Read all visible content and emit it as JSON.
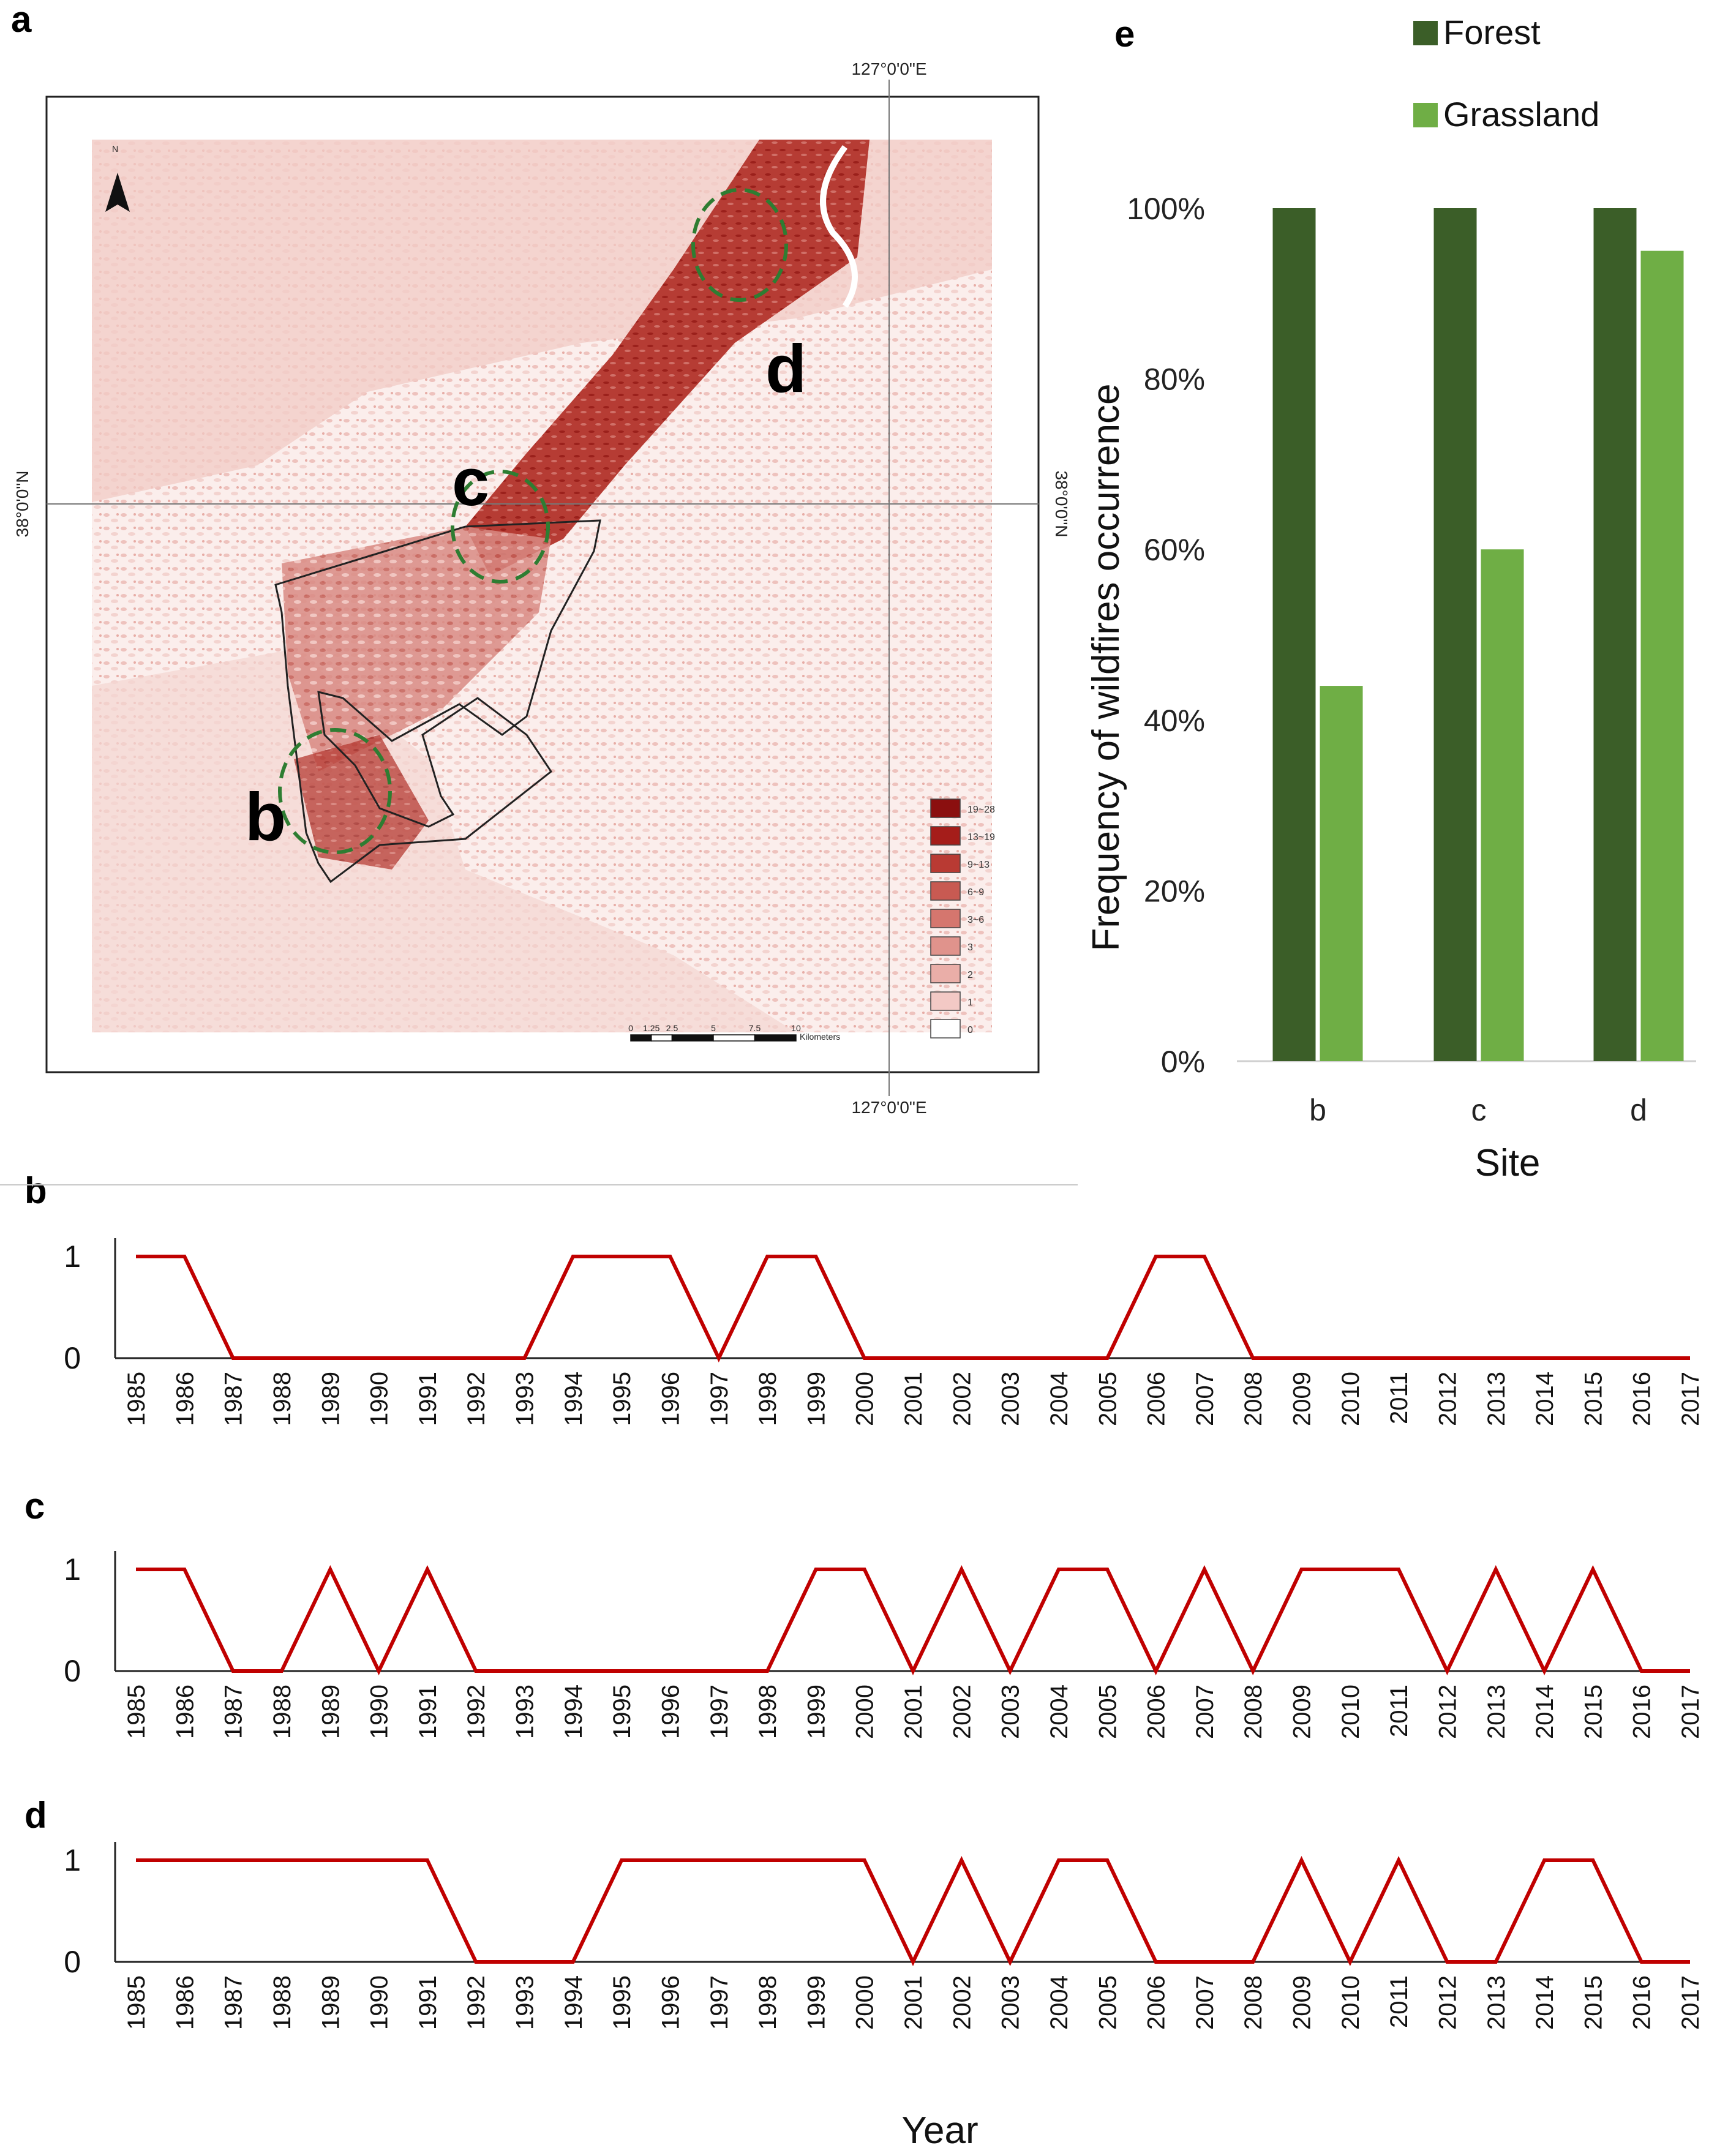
{
  "panels": {
    "a": "a",
    "b": "b",
    "c": "c",
    "d": "d",
    "e": "e"
  },
  "map": {
    "coord_top": "127°0'0\"E",
    "coord_bottom": "127°0'0\"E",
    "coord_left": "38°0'0\"N",
    "coord_right": "38°0'0\"N",
    "north_label": "N",
    "site_labels": {
      "b": "b",
      "c": "c",
      "d": "d"
    },
    "legend": [
      {
        "label": "19~28",
        "color": "#8b0f0f"
      },
      {
        "label": "13~19",
        "color": "#a51d1a"
      },
      {
        "label": "9~13",
        "color": "#b93a33"
      },
      {
        "label": "6~9",
        "color": "#c85a52"
      },
      {
        "label": "3~6",
        "color": "#d5766e"
      },
      {
        "label": "3",
        "color": "#e0938c"
      },
      {
        "label": "2",
        "color": "#eaaea8"
      },
      {
        "label": "1",
        "color": "#f3c9c5"
      },
      {
        "label": "0",
        "color": "#ffffff"
      }
    ],
    "scale": {
      "ticks": [
        "0",
        "1.25",
        "2.5",
        "5",
        "7.5",
        "10"
      ],
      "unit": "Kilometers"
    }
  },
  "chart_data": [
    {
      "id": "e",
      "type": "bar",
      "categories": [
        "b",
        "c",
        "d"
      ],
      "series": [
        {
          "name": "Forest",
          "color": "#3b5e28",
          "values": [
            100,
            100,
            100
          ]
        },
        {
          "name": "Grassland",
          "color": "#6fae45",
          "values": [
            44,
            60,
            95
          ]
        }
      ],
      "yticks": [
        "0%",
        "20%",
        "40%",
        "60%",
        "80%",
        "100%"
      ],
      "ylim": [
        0,
        100
      ],
      "xlabel": "Site",
      "ylabel": "Frequency of wildfires occurrence"
    },
    {
      "id": "b",
      "type": "line",
      "color": "#c00000",
      "x": [
        1985,
        1986,
        1987,
        1988,
        1989,
        1990,
        1991,
        1992,
        1993,
        1994,
        1995,
        1996,
        1997,
        1998,
        1999,
        2000,
        2001,
        2002,
        2003,
        2004,
        2005,
        2006,
        2007,
        2008,
        2009,
        2010,
        2011,
        2012,
        2013,
        2014,
        2015,
        2016,
        2017
      ],
      "values": [
        1,
        1,
        0,
        0,
        0,
        0,
        0,
        0,
        0,
        1,
        1,
        1,
        0,
        1,
        1,
        0,
        0,
        0,
        0,
        0,
        0,
        1,
        1,
        0,
        0,
        0,
        0,
        0,
        0,
        0,
        0,
        0,
        0
      ],
      "yticks": [
        "0",
        "1"
      ]
    },
    {
      "id": "c",
      "type": "line",
      "color": "#c00000",
      "x": [
        1985,
        1986,
        1987,
        1988,
        1989,
        1990,
        1991,
        1992,
        1993,
        1994,
        1995,
        1996,
        1997,
        1998,
        1999,
        2000,
        2001,
        2002,
        2003,
        2004,
        2005,
        2006,
        2007,
        2008,
        2009,
        2010,
        2011,
        2012,
        2013,
        2014,
        2015,
        2016,
        2017
      ],
      "values": [
        1,
        1,
        0,
        0,
        1,
        0,
        1,
        0,
        0,
        0,
        0,
        0,
        0,
        0,
        1,
        1,
        0,
        1,
        0,
        1,
        1,
        0,
        1,
        0,
        1,
        1,
        1,
        0,
        1,
        0,
        1,
        0,
        0
      ],
      "yticks": [
        "0",
        "1"
      ]
    },
    {
      "id": "d",
      "type": "line",
      "color": "#c00000",
      "x": [
        1985,
        1986,
        1987,
        1988,
        1989,
        1990,
        1991,
        1992,
        1993,
        1994,
        1995,
        1996,
        1997,
        1998,
        1999,
        2000,
        2001,
        2002,
        2003,
        2004,
        2005,
        2006,
        2007,
        2008,
        2009,
        2010,
        2011,
        2012,
        2013,
        2014,
        2015,
        2016,
        2017
      ],
      "values": [
        1,
        1,
        1,
        1,
        1,
        1,
        1,
        0,
        0,
        0,
        1,
        1,
        1,
        1,
        1,
        1,
        0,
        1,
        0,
        1,
        1,
        0,
        0,
        0,
        1,
        0,
        1,
        0,
        0,
        1,
        1,
        0,
        0
      ],
      "yticks": [
        "0",
        "1"
      ]
    }
  ],
  "year_axis_title": "Year"
}
